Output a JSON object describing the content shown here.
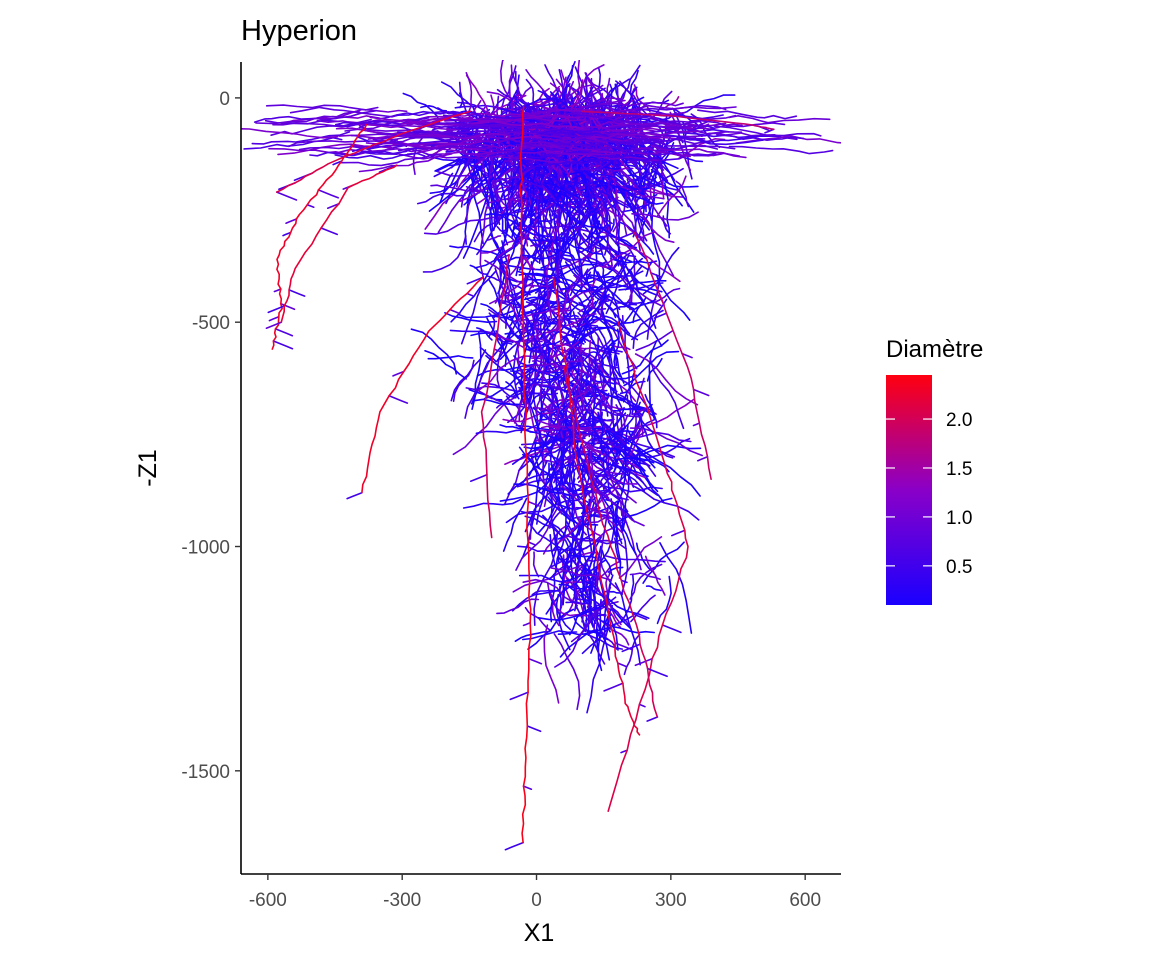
{
  "chart_data": {
    "type": "scatter",
    "title": "Hyperion",
    "xlabel": "X1",
    "ylabel": "-Z1",
    "xlim": [
      -660,
      680
    ],
    "ylim": [
      -1730,
      80
    ],
    "x_ticks": [
      -600,
      -300,
      0,
      300,
      600
    ],
    "x_tick_labels": [
      "-600",
      "-300",
      "0",
      "300",
      "600"
    ],
    "y_ticks": [
      0,
      -500,
      -1000,
      -1500
    ],
    "y_tick_labels": [
      "0",
      "-500",
      "-1000",
      "-1500"
    ],
    "grid": false,
    "legend": {
      "title": "Diamètre",
      "placement": "right",
      "color_low": "#1a00ff",
      "color_mid": "#8a00c8",
      "color_high": "#ff0010",
      "range": [
        0.1,
        2.45
      ],
      "ticks": [
        0.5,
        1.0,
        1.5,
        2.0
      ],
      "tick_labels": [
        "0.5",
        "1.0",
        "1.5",
        "2.0"
      ]
    },
    "main_roots": [
      {
        "diameter": 2.4,
        "points": [
          [
            -30,
            -20
          ],
          [
            -35,
            -200
          ],
          [
            -30,
            -500
          ],
          [
            -20,
            -900
          ],
          [
            -15,
            -1200
          ],
          [
            -25,
            -1450
          ],
          [
            -30,
            -1660
          ]
        ]
      },
      {
        "diameter": 2.3,
        "points": [
          [
            -380,
            -60
          ],
          [
            -440,
            -150
          ],
          [
            -530,
            -260
          ],
          [
            -580,
            -360
          ],
          [
            -570,
            -470
          ],
          [
            -590,
            -560
          ]
        ]
      },
      {
        "diameter": 2.2,
        "points": [
          [
            -310,
            -150
          ],
          [
            -420,
            -200
          ],
          [
            -540,
            -380
          ],
          [
            -570,
            -500
          ]
        ]
      },
      {
        "diameter": 2.3,
        "points": [
          [
            -120,
            -400
          ],
          [
            -240,
            -520
          ],
          [
            -350,
            -700
          ],
          [
            -390,
            -880
          ]
        ]
      },
      {
        "diameter": 2.2,
        "points": [
          [
            40,
            -400
          ],
          [
            90,
            -800
          ],
          [
            170,
            -1200
          ],
          [
            200,
            -1350
          ],
          [
            230,
            -1420
          ]
        ]
      },
      {
        "diameter": 2.1,
        "points": [
          [
            180,
            -500
          ],
          [
            290,
            -820
          ],
          [
            340,
            -1000
          ],
          [
            260,
            -1250
          ],
          [
            160,
            -1590
          ]
        ]
      },
      {
        "diameter": 2.0,
        "points": [
          [
            60,
            -600
          ],
          [
            150,
            -950
          ],
          [
            230,
            -1200
          ],
          [
            270,
            -1380
          ]
        ]
      },
      {
        "diameter": 2.0,
        "points": [
          [
            -60,
            -350
          ],
          [
            -120,
            -700
          ],
          [
            -100,
            -980
          ]
        ]
      },
      {
        "diameter": 1.9,
        "points": [
          [
            220,
            -300
          ],
          [
            340,
            -600
          ],
          [
            390,
            -850
          ]
        ]
      },
      {
        "diameter": 2.1,
        "points": [
          [
            -150,
            -30
          ],
          [
            -300,
            -80
          ],
          [
            -450,
            -140
          ],
          [
            -580,
            -210
          ]
        ]
      },
      {
        "diameter": 1.8,
        "points": [
          [
            100,
            -30
          ],
          [
            300,
            -40
          ],
          [
            480,
            -60
          ],
          [
            530,
            -70
          ]
        ]
      }
    ],
    "lateral_root_count": 1800,
    "lateral_root_diameter_range": [
      0.1,
      1.3
    ]
  }
}
